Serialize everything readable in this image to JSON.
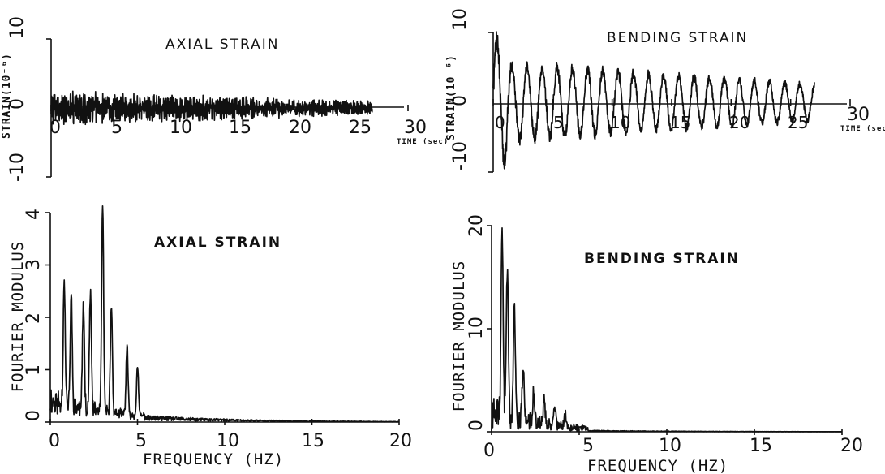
{
  "chart_data": [
    {
      "type": "line",
      "title": "AXIAL STRAIN",
      "xlabel": "TIME (sec)",
      "ylabel": "STRAIN(10⁻⁶)",
      "xlim": [
        0,
        30
      ],
      "ylim": [
        -10,
        10
      ],
      "x_ticks": [
        "0",
        "5",
        "10",
        "15",
        "20",
        "25",
        "30"
      ],
      "y_ticks": [
        "10",
        "0",
        "-10"
      ],
      "series": [
        {
          "values": {
            "type": "noise",
            "duration": 27,
            "amplitude_start": 2.0,
            "amplitude_end": 0.8,
            "seed": 3
          }
        }
      ]
    },
    {
      "type": "line",
      "title": "BENDING STRAIN",
      "xlabel": "TIME (sec)",
      "ylabel": "STRAIN(10⁻⁶)",
      "xlim": [
        0,
        30
      ],
      "ylim": [
        -10,
        10
      ],
      "x_ticks": [
        "0",
        "5",
        "10",
        "15",
        "20",
        "25",
        "30"
      ],
      "y_ticks": [
        "10",
        "0",
        "-10"
      ],
      "series": [
        {
          "values": {
            "type": "oscillation",
            "duration": 27,
            "amplitude_start": 5.5,
            "amplitude_end": 2.5,
            "dominant_freq_hz": 0.75,
            "seed": 7
          }
        }
      ]
    },
    {
      "type": "line",
      "title": "AXIAL STRAIN",
      "xlabel": "FREQUENCY (HZ)",
      "ylabel": "FOURIER MODULUS",
      "xlim": [
        0,
        20
      ],
      "ylim": [
        0,
        4
      ],
      "x_ticks": [
        "0",
        "5",
        "10",
        "15",
        "20"
      ],
      "y_ticks": [
        "0",
        "1",
        "2",
        "3",
        "4"
      ],
      "series": [
        {
          "values": {
            "type": "spectrum",
            "peaks": [
              [
                0.8,
                2.4
              ],
              [
                1.2,
                2.1
              ],
              [
                1.9,
                2.0
              ],
              [
                2.3,
                2.3
              ],
              [
                3.0,
                3.9
              ],
              [
                3.5,
                2.1
              ],
              [
                4.4,
                1.3
              ],
              [
                5.0,
                0.9
              ]
            ],
            "tail": 0.25,
            "seed": 11
          }
        }
      ]
    },
    {
      "type": "line",
      "title": "BENDING STRAIN",
      "xlabel": "FREQUENCY (HZ)",
      "ylabel": "FOURIER MODULUS",
      "xlim": [
        0,
        20
      ],
      "ylim": [
        0,
        20
      ],
      "x_ticks": [
        "0",
        "5",
        "10",
        "15",
        "20"
      ],
      "y_ticks": [
        "0",
        "10",
        "20"
      ],
      "series": [
        {
          "values": {
            "type": "spectrum",
            "peaks": [
              [
                0.6,
                18.5
              ],
              [
                0.9,
                14.8
              ],
              [
                1.3,
                11.0
              ],
              [
                1.8,
                5.5
              ],
              [
                2.4,
                3.0
              ],
              [
                3.0,
                2.5
              ],
              [
                3.6,
                2.0
              ],
              [
                4.2,
                1.2
              ]
            ],
            "tail": 0.3,
            "seed": 19
          }
        }
      ]
    }
  ]
}
